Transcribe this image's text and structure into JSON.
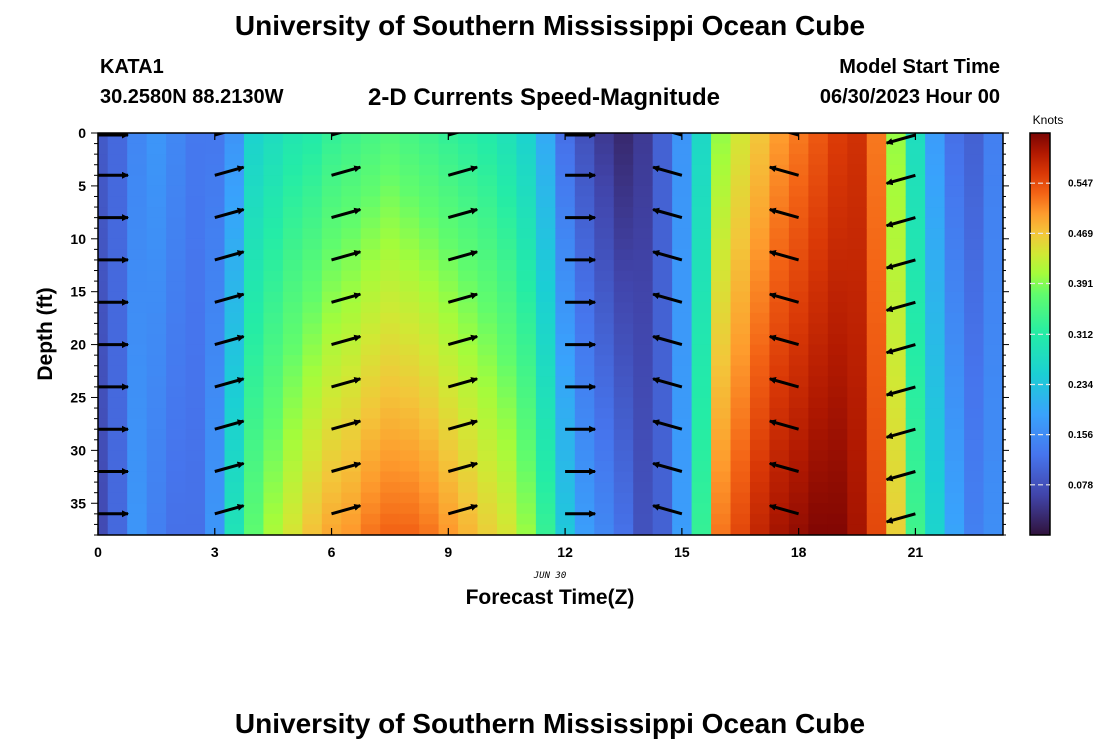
{
  "header": {
    "title": "University of Southern Mississippi Ocean Cube",
    "station": "KATA1",
    "coordinates": "30.2580N  88.2130W",
    "plot_title": "2-D Currents Speed-Magnitude",
    "model_start_label": "Model Start Time",
    "model_start_value": "06/30/2023 Hour 00",
    "bottom_title": "University of Southern Mississippi Ocean Cube"
  },
  "chart_data": {
    "type": "heatmap",
    "title": "2-D Currents Speed-Magnitude",
    "xlabel": "Forecast Time(Z)",
    "ylabel": "Depth (ft)",
    "x_sublabel": "JUN 30",
    "xlim": [
      0,
      23.25
    ],
    "ylim": [
      38,
      0
    ],
    "x_ticks": [
      0,
      3,
      6,
      9,
      12,
      15,
      18,
      21
    ],
    "y_ticks": [
      0,
      5,
      10,
      15,
      20,
      25,
      30,
      35
    ],
    "colorbar": {
      "label": "Knots",
      "range": [
        0,
        0.625
      ],
      "ticks": [
        "0.078",
        "0.156",
        "0.234",
        "0.312",
        "0.391",
        "0.469",
        "0.547"
      ],
      "tick_values": [
        0.078,
        0.156,
        0.234,
        0.312,
        0.391,
        0.469,
        0.547
      ]
    },
    "hours": [
      0,
      0.5,
      1,
      1.5,
      2,
      2.5,
      3,
      3.5,
      4,
      4.5,
      5,
      5.5,
      6,
      6.5,
      7,
      7.5,
      8,
      8.5,
      9,
      9.5,
      10,
      10.5,
      11,
      11.5,
      12,
      12.5,
      13,
      13.5,
      14,
      14.5,
      15,
      15.5,
      16,
      16.5,
      17,
      17.5,
      18,
      18.5,
      19,
      19.5,
      20,
      20.5,
      21,
      21.5,
      22,
      22.5,
      23
    ],
    "surface_speed": [
      0.09,
      0.11,
      0.15,
      0.17,
      0.15,
      0.13,
      0.13,
      0.17,
      0.26,
      0.28,
      0.3,
      0.31,
      0.33,
      0.34,
      0.35,
      0.36,
      0.35,
      0.34,
      0.33,
      0.32,
      0.31,
      0.29,
      0.26,
      0.2,
      0.12,
      0.08,
      0.05,
      0.03,
      0.05,
      0.1,
      0.17,
      0.27,
      0.4,
      0.44,
      0.47,
      0.5,
      0.52,
      0.54,
      0.56,
      0.57,
      0.52,
      0.4,
      0.28,
      0.18,
      0.12,
      0.1,
      0.14
    ],
    "bottom_speed": [
      0.07,
      0.11,
      0.17,
      0.14,
      0.12,
      0.12,
      0.17,
      0.29,
      0.37,
      0.41,
      0.44,
      0.47,
      0.49,
      0.5,
      0.52,
      0.53,
      0.53,
      0.52,
      0.5,
      0.48,
      0.46,
      0.44,
      0.4,
      0.33,
      0.24,
      0.18,
      0.15,
      0.12,
      0.08,
      0.1,
      0.18,
      0.33,
      0.52,
      0.55,
      0.58,
      0.6,
      0.61,
      0.62,
      0.62,
      0.6,
      0.55,
      0.46,
      0.34,
      0.26,
      0.19,
      0.14,
      0.16
    ],
    "vector_hours": [
      0,
      3,
      6,
      9,
      12,
      15,
      18,
      21
    ],
    "vector_depths": [
      0,
      4,
      8,
      12,
      16,
      20,
      24,
      28,
      32,
      36
    ],
    "vector_direction": [
      "east",
      "east-northeast",
      "east-northeast",
      "east-northeast",
      "east",
      "west-northwest",
      "west-northwest",
      "west-southwest"
    ]
  }
}
